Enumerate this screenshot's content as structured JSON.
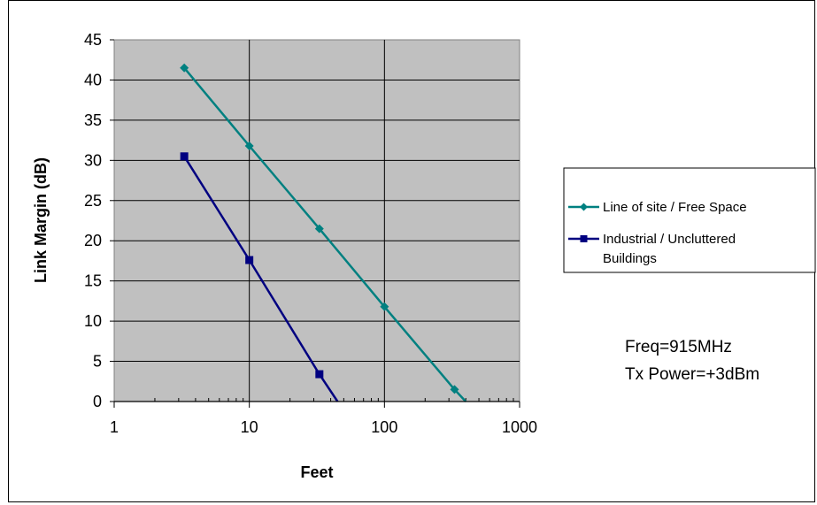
{
  "chart_data": {
    "type": "line",
    "title": "",
    "xlabel": "Feet",
    "ylabel": "Link Margin (dB)",
    "x_scale": "log",
    "xlim": [
      1,
      1000
    ],
    "ylim": [
      0,
      45
    ],
    "x_ticks": [
      "1",
      "10",
      "100",
      "1000"
    ],
    "y_ticks": [
      "0",
      "5",
      "10",
      "15",
      "20",
      "25",
      "30",
      "35",
      "40",
      "45"
    ],
    "grid": true,
    "plot_background": "#c0c0c0",
    "legend_position": "right",
    "series": [
      {
        "name": "Line of site / Free Space",
        "color": "#008080",
        "marker": "diamond",
        "x": [
          3.3,
          10,
          33,
          100,
          330
        ],
        "y": [
          41.5,
          31.8,
          21.5,
          11.8,
          1.5
        ],
        "line_end": [
          400,
          0
        ]
      },
      {
        "name": "Industrial / Uncluttered Buildings",
        "name_lines": [
          "Industrial / Uncluttered",
          "Buildings"
        ],
        "color": "#000080",
        "marker": "square",
        "x": [
          3.3,
          10,
          33
        ],
        "y": [
          30.5,
          17.6,
          3.4
        ],
        "line_end": [
          45,
          0
        ]
      }
    ],
    "annotations": [
      "Freq=915MHz",
      "Tx Power=+3dBm"
    ]
  }
}
